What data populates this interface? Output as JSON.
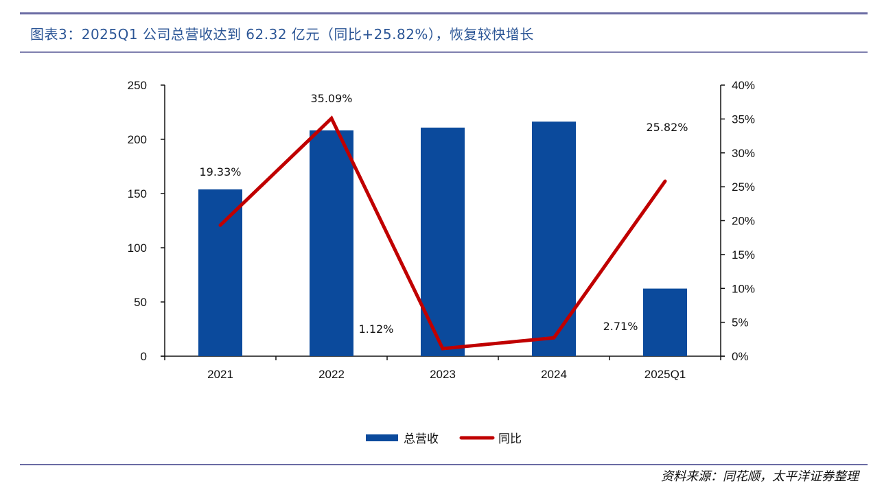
{
  "header": {
    "title": "图表3：2025Q1 公司总营收达到 62.32 亿元（同比+25.82%），恢复较快增长"
  },
  "footer": {
    "source": "资料来源：同花顺，太平洋证券整理"
  },
  "colors": {
    "bar": "#0b4a9c",
    "line": "#c00000",
    "rule": "#6a6ba3",
    "title": "#2c5696"
  },
  "chart_data": {
    "type": "bar",
    "title": "2025Q1 公司总营收达到 62.32 亿元（同比+25.82%），恢复较快增长",
    "categories": [
      "2021",
      "2022",
      "2023",
      "2024",
      "2025Q1"
    ],
    "series": [
      {
        "name": "总营收",
        "type": "bar",
        "axis": "left",
        "values": [
          153.8,
          208.2,
          210.8,
          216.3,
          62.32
        ]
      },
      {
        "name": "同比",
        "type": "line",
        "axis": "right",
        "values": [
          19.33,
          35.09,
          1.12,
          2.71,
          25.82
        ],
        "labels": [
          "19.33%",
          "35.09%",
          "1.12%",
          "2.71%",
          "25.82%"
        ]
      }
    ],
    "y_left": {
      "min": 0,
      "max": 250,
      "step": 50,
      "ticks": [
        "0",
        "50",
        "100",
        "150",
        "200",
        "250"
      ]
    },
    "y_right": {
      "min": 0,
      "max": 40,
      "step": 5,
      "ticks": [
        "0%",
        "5%",
        "10%",
        "15%",
        "20%",
        "25%",
        "30%",
        "35%",
        "40%"
      ]
    },
    "xlabel": "",
    "ylabel": "",
    "grid": false,
    "legend": {
      "position": "bottom-center",
      "entries": [
        "总营收",
        "同比"
      ]
    }
  }
}
